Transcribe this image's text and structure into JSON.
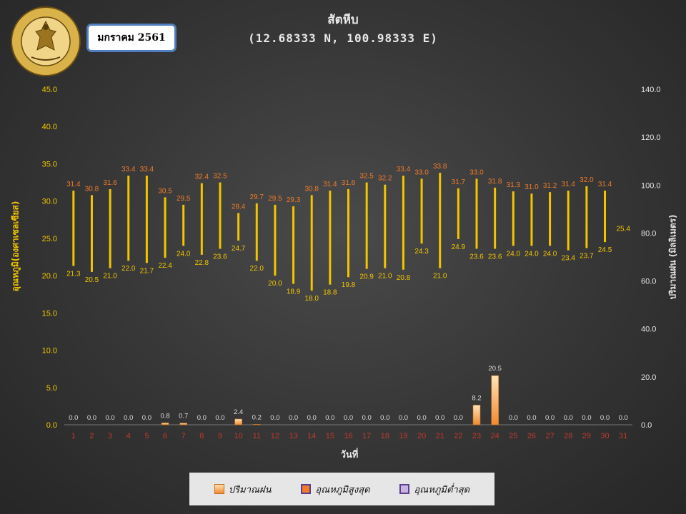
{
  "header": {
    "month": "มกราคม 2561",
    "title": "สัตหีบ",
    "subtitle": "(12.68333 N, 100.98333 E)",
    "logo_text": "METEOROLOGICAL DEPARTMENT"
  },
  "legend": {
    "rain": "ปริมาณฝน",
    "max": "อุณหภูมิสูงสุด",
    "min": "อุณหภูมิต่ำสุด"
  },
  "colors": {
    "temp_bar": "#f2c500",
    "max_label": "#f07b2a",
    "min_label": "#f2c500",
    "rain_fill": "#f08a30",
    "day_label": "#c0392b"
  },
  "chart_data": {
    "type": "bar",
    "title": "สัตหีบ",
    "subtitle": "(12.68333 N, 100.98333 E)",
    "xlabel": "วันที่",
    "ylabel_left": "อุณหภูมิ(องศาเซลเซียส)",
    "ylabel_right": "ปริมาณฝน (มิลลิเมตร)",
    "ylim_left": [
      0,
      45
    ],
    "ylim_right": [
      0,
      140
    ],
    "yticks_left": [
      "0.0",
      "5.0",
      "10.0",
      "15.0",
      "20.0",
      "25.0",
      "30.0",
      "35.0",
      "40.0",
      "45.0"
    ],
    "yticks_right": [
      "0.0",
      "20.0",
      "40.0",
      "60.0",
      "80.0",
      "100.0",
      "120.0",
      "140.0"
    ],
    "categories": [
      "1",
      "2",
      "3",
      "4",
      "5",
      "6",
      "7",
      "8",
      "9",
      "10",
      "11",
      "12",
      "13",
      "14",
      "15",
      "16",
      "17",
      "18",
      "19",
      "20",
      "21",
      "22",
      "23",
      "24",
      "25",
      "26",
      "27",
      "28",
      "29",
      "30",
      "31"
    ],
    "series": [
      {
        "name": "อุณหภูมิสูงสุด",
        "values": [
          31.4,
          30.8,
          31.6,
          33.4,
          33.4,
          30.5,
          29.5,
          32.4,
          32.5,
          28.4,
          29.7,
          29.5,
          29.3,
          30.8,
          31.4,
          31.6,
          32.5,
          32.2,
          33.4,
          33.0,
          33.8,
          31.7,
          33.0,
          31.8,
          31.3,
          31.0,
          31.2,
          31.4,
          32.0,
          31.4,
          null
        ]
      },
      {
        "name": "อุณหภูมิต่ำสุด",
        "values": [
          21.3,
          20.5,
          21.0,
          22.0,
          21.7,
          22.4,
          24.0,
          22.8,
          23.6,
          24.7,
          22.0,
          20.0,
          18.9,
          18.0,
          18.8,
          19.8,
          20.9,
          21.0,
          20.8,
          24.3,
          21.0,
          24.9,
          23.6,
          23.6,
          24.0,
          24.0,
          24.0,
          23.4,
          23.7,
          24.5,
          25.4
        ]
      },
      {
        "name": "ปริมาณฝน",
        "values": [
          0.0,
          0.0,
          0.0,
          0.0,
          0.0,
          0.8,
          0.7,
          0.0,
          0.0,
          2.4,
          0.2,
          0.0,
          0.0,
          0.0,
          0.0,
          0.0,
          0.0,
          0.0,
          0.0,
          0.0,
          0.0,
          0.0,
          8.2,
          20.5,
          0.0,
          0.0,
          0.0,
          0.0,
          0.0,
          0.0,
          0.0
        ]
      }
    ],
    "grid": false,
    "legend_position": "bottom"
  }
}
